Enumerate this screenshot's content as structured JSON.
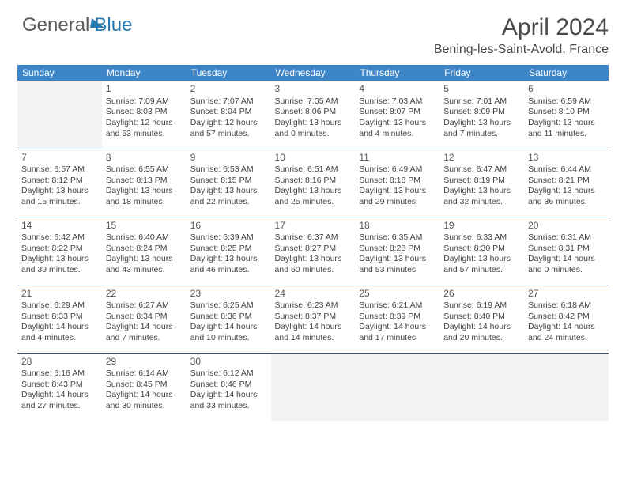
{
  "logo": {
    "text1": "General",
    "text2": "Blue"
  },
  "title": "April 2024",
  "location": "Bening-les-Saint-Avold, France",
  "colors": {
    "header_bg": "#3d85c6",
    "header_text": "#ffffff",
    "border": "#2a5d8a",
    "empty_bg": "#f2f2f2",
    "text": "#444444",
    "logo_gray": "#5a5a5a",
    "logo_blue": "#2a7ab0"
  },
  "typography": {
    "title_fontsize": 30,
    "location_fontsize": 16,
    "dayhead_fontsize": 12,
    "cell_fontsize": 10.5
  },
  "dayHeaders": [
    "Sunday",
    "Monday",
    "Tuesday",
    "Wednesday",
    "Thursday",
    "Friday",
    "Saturday"
  ],
  "weeks": [
    [
      {
        "empty": true
      },
      {
        "day": "1",
        "sunrise": "Sunrise: 7:09 AM",
        "sunset": "Sunset: 8:03 PM",
        "daylight": "Daylight: 12 hours and 53 minutes."
      },
      {
        "day": "2",
        "sunrise": "Sunrise: 7:07 AM",
        "sunset": "Sunset: 8:04 PM",
        "daylight": "Daylight: 12 hours and 57 minutes."
      },
      {
        "day": "3",
        "sunrise": "Sunrise: 7:05 AM",
        "sunset": "Sunset: 8:06 PM",
        "daylight": "Daylight: 13 hours and 0 minutes."
      },
      {
        "day": "4",
        "sunrise": "Sunrise: 7:03 AM",
        "sunset": "Sunset: 8:07 PM",
        "daylight": "Daylight: 13 hours and 4 minutes."
      },
      {
        "day": "5",
        "sunrise": "Sunrise: 7:01 AM",
        "sunset": "Sunset: 8:09 PM",
        "daylight": "Daylight: 13 hours and 7 minutes."
      },
      {
        "day": "6",
        "sunrise": "Sunrise: 6:59 AM",
        "sunset": "Sunset: 8:10 PM",
        "daylight": "Daylight: 13 hours and 11 minutes."
      }
    ],
    [
      {
        "day": "7",
        "sunrise": "Sunrise: 6:57 AM",
        "sunset": "Sunset: 8:12 PM",
        "daylight": "Daylight: 13 hours and 15 minutes."
      },
      {
        "day": "8",
        "sunrise": "Sunrise: 6:55 AM",
        "sunset": "Sunset: 8:13 PM",
        "daylight": "Daylight: 13 hours and 18 minutes."
      },
      {
        "day": "9",
        "sunrise": "Sunrise: 6:53 AM",
        "sunset": "Sunset: 8:15 PM",
        "daylight": "Daylight: 13 hours and 22 minutes."
      },
      {
        "day": "10",
        "sunrise": "Sunrise: 6:51 AM",
        "sunset": "Sunset: 8:16 PM",
        "daylight": "Daylight: 13 hours and 25 minutes."
      },
      {
        "day": "11",
        "sunrise": "Sunrise: 6:49 AM",
        "sunset": "Sunset: 8:18 PM",
        "daylight": "Daylight: 13 hours and 29 minutes."
      },
      {
        "day": "12",
        "sunrise": "Sunrise: 6:47 AM",
        "sunset": "Sunset: 8:19 PM",
        "daylight": "Daylight: 13 hours and 32 minutes."
      },
      {
        "day": "13",
        "sunrise": "Sunrise: 6:44 AM",
        "sunset": "Sunset: 8:21 PM",
        "daylight": "Daylight: 13 hours and 36 minutes."
      }
    ],
    [
      {
        "day": "14",
        "sunrise": "Sunrise: 6:42 AM",
        "sunset": "Sunset: 8:22 PM",
        "daylight": "Daylight: 13 hours and 39 minutes."
      },
      {
        "day": "15",
        "sunrise": "Sunrise: 6:40 AM",
        "sunset": "Sunset: 8:24 PM",
        "daylight": "Daylight: 13 hours and 43 minutes."
      },
      {
        "day": "16",
        "sunrise": "Sunrise: 6:39 AM",
        "sunset": "Sunset: 8:25 PM",
        "daylight": "Daylight: 13 hours and 46 minutes."
      },
      {
        "day": "17",
        "sunrise": "Sunrise: 6:37 AM",
        "sunset": "Sunset: 8:27 PM",
        "daylight": "Daylight: 13 hours and 50 minutes."
      },
      {
        "day": "18",
        "sunrise": "Sunrise: 6:35 AM",
        "sunset": "Sunset: 8:28 PM",
        "daylight": "Daylight: 13 hours and 53 minutes."
      },
      {
        "day": "19",
        "sunrise": "Sunrise: 6:33 AM",
        "sunset": "Sunset: 8:30 PM",
        "daylight": "Daylight: 13 hours and 57 minutes."
      },
      {
        "day": "20",
        "sunrise": "Sunrise: 6:31 AM",
        "sunset": "Sunset: 8:31 PM",
        "daylight": "Daylight: 14 hours and 0 minutes."
      }
    ],
    [
      {
        "day": "21",
        "sunrise": "Sunrise: 6:29 AM",
        "sunset": "Sunset: 8:33 PM",
        "daylight": "Daylight: 14 hours and 4 minutes."
      },
      {
        "day": "22",
        "sunrise": "Sunrise: 6:27 AM",
        "sunset": "Sunset: 8:34 PM",
        "daylight": "Daylight: 14 hours and 7 minutes."
      },
      {
        "day": "23",
        "sunrise": "Sunrise: 6:25 AM",
        "sunset": "Sunset: 8:36 PM",
        "daylight": "Daylight: 14 hours and 10 minutes."
      },
      {
        "day": "24",
        "sunrise": "Sunrise: 6:23 AM",
        "sunset": "Sunset: 8:37 PM",
        "daylight": "Daylight: 14 hours and 14 minutes."
      },
      {
        "day": "25",
        "sunrise": "Sunrise: 6:21 AM",
        "sunset": "Sunset: 8:39 PM",
        "daylight": "Daylight: 14 hours and 17 minutes."
      },
      {
        "day": "26",
        "sunrise": "Sunrise: 6:19 AM",
        "sunset": "Sunset: 8:40 PM",
        "daylight": "Daylight: 14 hours and 20 minutes."
      },
      {
        "day": "27",
        "sunrise": "Sunrise: 6:18 AM",
        "sunset": "Sunset: 8:42 PM",
        "daylight": "Daylight: 14 hours and 24 minutes."
      }
    ],
    [
      {
        "day": "28",
        "sunrise": "Sunrise: 6:16 AM",
        "sunset": "Sunset: 8:43 PM",
        "daylight": "Daylight: 14 hours and 27 minutes."
      },
      {
        "day": "29",
        "sunrise": "Sunrise: 6:14 AM",
        "sunset": "Sunset: 8:45 PM",
        "daylight": "Daylight: 14 hours and 30 minutes."
      },
      {
        "day": "30",
        "sunrise": "Sunrise: 6:12 AM",
        "sunset": "Sunset: 8:46 PM",
        "daylight": "Daylight: 14 hours and 33 minutes."
      },
      {
        "empty": true
      },
      {
        "empty": true
      },
      {
        "empty": true
      },
      {
        "empty": true
      }
    ]
  ]
}
